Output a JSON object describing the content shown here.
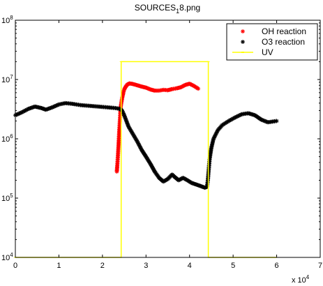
{
  "chart_data": {
    "type": "scatter",
    "title_main": "SOURCES",
    "title_sub": "1",
    "title_rest": "8.png",
    "xlim": [
      0,
      70000
    ],
    "ylim": [
      10000,
      100000000
    ],
    "yscale": "log",
    "x_ticks": [
      "0",
      "1",
      "2",
      "3",
      "4",
      "5",
      "6",
      "7"
    ],
    "x_tick_values": [
      0,
      10000,
      20000,
      30000,
      40000,
      50000,
      60000,
      70000
    ],
    "x_multiplier_base": "x 10",
    "x_multiplier_exp": "4",
    "y_ticks": [
      {
        "value": 10000,
        "base": "10",
        "exp": "4"
      },
      {
        "value": 100000,
        "base": "10",
        "exp": "5"
      },
      {
        "value": 1000000,
        "base": "10",
        "exp": "6"
      },
      {
        "value": 10000000,
        "base": "10",
        "exp": "7"
      },
      {
        "value": 100000000,
        "base": "10",
        "exp": "8"
      }
    ],
    "legend_position": "top-right",
    "series": [
      {
        "name": "OH reaction",
        "color": "#ff0000",
        "marker": "*",
        "points": [
          [
            23300,
            280000
          ],
          [
            23400,
            350000
          ],
          [
            23500,
            450000
          ],
          [
            23600,
            600000
          ],
          [
            23700,
            800000
          ],
          [
            23800,
            1100000
          ],
          [
            23900,
            1500000
          ],
          [
            24000,
            2000000
          ],
          [
            24100,
            2700000
          ],
          [
            24200,
            3500000
          ],
          [
            24400,
            4300000
          ],
          [
            24600,
            5200000
          ],
          [
            24800,
            6000000
          ],
          [
            25000,
            6800000
          ],
          [
            25300,
            7500000
          ],
          [
            25700,
            8200000
          ],
          [
            26200,
            8600000
          ],
          [
            27000,
            8400000
          ],
          [
            28000,
            8000000
          ],
          [
            29000,
            7600000
          ],
          [
            30000,
            7300000
          ],
          [
            31000,
            6800000
          ],
          [
            32000,
            6500000
          ],
          [
            33000,
            6500000
          ],
          [
            34000,
            6700000
          ],
          [
            35000,
            6600000
          ],
          [
            36000,
            6900000
          ],
          [
            37000,
            7100000
          ],
          [
            38000,
            7400000
          ],
          [
            39000,
            8100000
          ],
          [
            40000,
            8500000
          ],
          [
            41000,
            7800000
          ],
          [
            42000,
            7000000
          ]
        ]
      },
      {
        "name": "O3 reaction",
        "color": "#000000",
        "marker": "*",
        "points": [
          [
            0,
            2500000
          ],
          [
            1500,
            2800000
          ],
          [
            3000,
            3200000
          ],
          [
            4500,
            3500000
          ],
          [
            6000,
            3300000
          ],
          [
            7000,
            3100000
          ],
          [
            8500,
            3400000
          ],
          [
            10000,
            3800000
          ],
          [
            11500,
            4000000
          ],
          [
            13000,
            3900000
          ],
          [
            15000,
            3700000
          ],
          [
            17000,
            3600000
          ],
          [
            19000,
            3500000
          ],
          [
            21000,
            3400000
          ],
          [
            23000,
            3300000
          ],
          [
            24000,
            3200000
          ],
          [
            24500,
            3000000
          ],
          [
            25000,
            2500000
          ],
          [
            25500,
            2000000
          ],
          [
            26000,
            1600000
          ],
          [
            27000,
            1200000
          ],
          [
            28000,
            900000
          ],
          [
            29000,
            650000
          ],
          [
            30000,
            500000
          ],
          [
            31000,
            380000
          ],
          [
            32000,
            280000
          ],
          [
            33000,
            220000
          ],
          [
            34000,
            190000
          ],
          [
            35000,
            210000
          ],
          [
            36000,
            250000
          ],
          [
            36500,
            230000
          ],
          [
            37500,
            200000
          ],
          [
            38500,
            220000
          ],
          [
            39500,
            200000
          ],
          [
            40500,
            180000
          ],
          [
            41500,
            170000
          ],
          [
            42500,
            160000
          ],
          [
            43500,
            150000
          ],
          [
            44000,
            155000
          ],
          [
            44200,
            200000
          ],
          [
            44400,
            300000
          ],
          [
            44600,
            450000
          ],
          [
            45000,
            700000
          ],
          [
            45500,
            1000000
          ],
          [
            46500,
            1400000
          ],
          [
            47500,
            1700000
          ],
          [
            49000,
            2000000
          ],
          [
            50500,
            2300000
          ],
          [
            52000,
            2600000
          ],
          [
            53500,
            2700000
          ],
          [
            55000,
            2500000
          ],
          [
            56500,
            2100000
          ],
          [
            58000,
            1900000
          ],
          [
            60000,
            2000000
          ]
        ]
      },
      {
        "name": "UV",
        "color": "#ffff00",
        "marker": "line",
        "points": [
          [
            0,
            10000
          ],
          [
            24300,
            10000
          ],
          [
            24300,
            20000000
          ],
          [
            44300,
            20000000
          ],
          [
            44300,
            10000
          ],
          [
            60000,
            10000
          ]
        ]
      }
    ]
  }
}
